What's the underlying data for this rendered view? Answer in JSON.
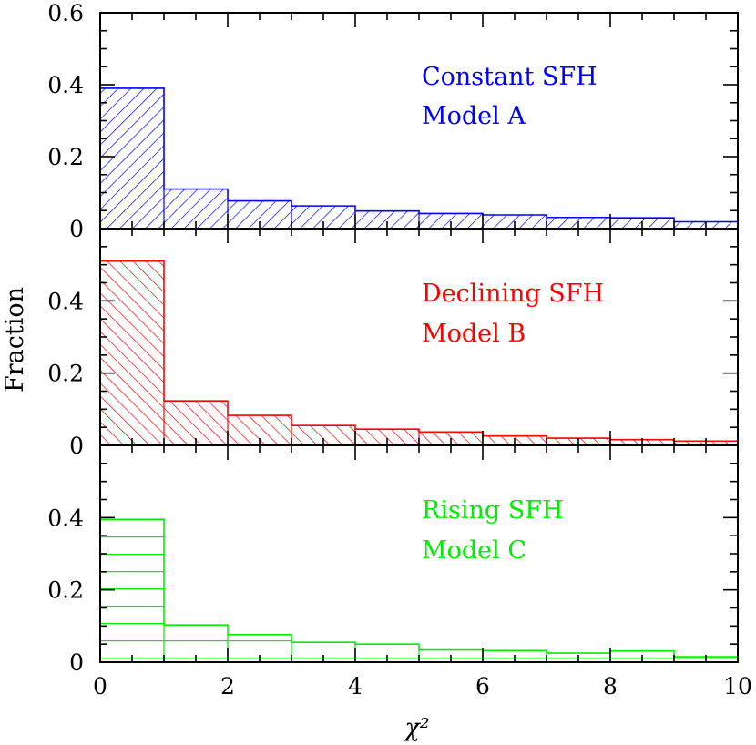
{
  "chart_data": {
    "type": "bar",
    "ylabel": "Fraction",
    "xlabel": "χ²",
    "xlim": [
      0,
      10
    ],
    "x_ticks": [
      "0",
      "2",
      "4",
      "6",
      "8",
      "10"
    ],
    "y_ticks_top": [
      "0",
      "0.2",
      "0.4",
      "0.6"
    ],
    "y_ticks_lower": [
      "0",
      "0.2",
      "0.4"
    ],
    "bin_edges": [
      0,
      1,
      2,
      3,
      4,
      5,
      6,
      7,
      8,
      9,
      10
    ],
    "panels": [
      {
        "legend_line1": "Constant SFH",
        "legend_line2": "Model A",
        "color": "#0000ff",
        "hatch": "diagonal-down",
        "ylim": [
          0,
          0.6
        ],
        "values": [
          0.39,
          0.11,
          0.077,
          0.063,
          0.049,
          0.042,
          0.038,
          0.031,
          0.03,
          0.019
        ]
      },
      {
        "legend_line1": "Declining SFH",
        "legend_line2": "Model B",
        "color": "#ff0000",
        "hatch": "diagonal-up",
        "ylim": [
          0,
          0.6
        ],
        "values": [
          0.51,
          0.123,
          0.083,
          0.055,
          0.045,
          0.037,
          0.026,
          0.02,
          0.016,
          0.012
        ]
      },
      {
        "legend_line1": "Rising SFH",
        "legend_line2": "Model C",
        "color": "#00ee00",
        "hatch": "horizontal",
        "ylim": [
          0,
          0.6
        ],
        "values": [
          0.395,
          0.103,
          0.076,
          0.055,
          0.05,
          0.034,
          0.032,
          0.025,
          0.031,
          0.015
        ]
      }
    ]
  }
}
